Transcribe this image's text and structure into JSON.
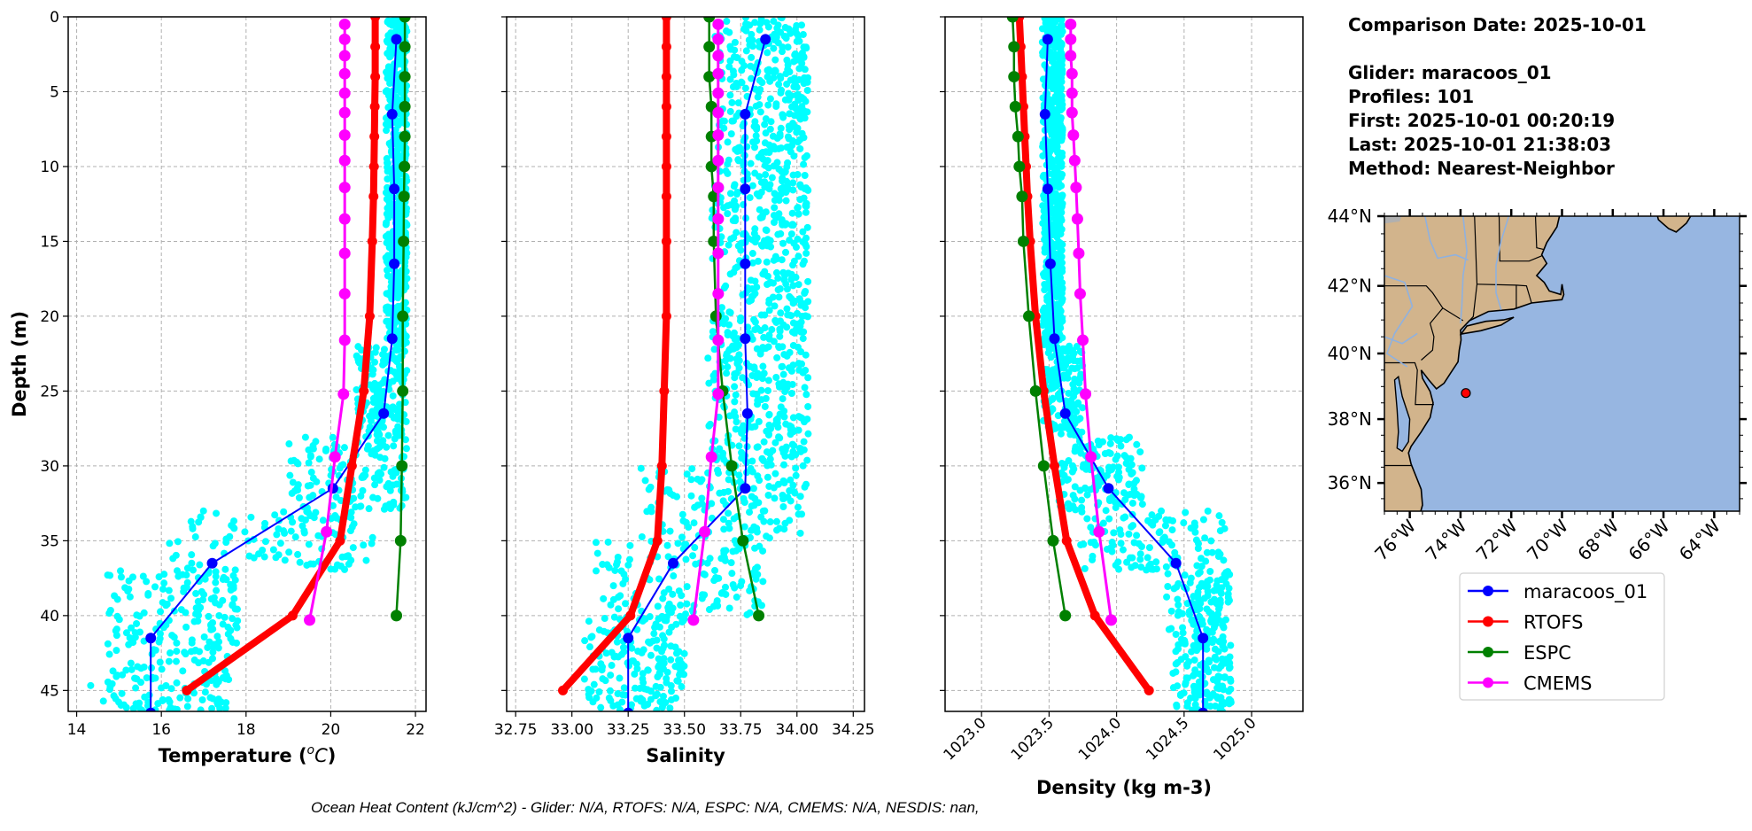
{
  "info": {
    "comparison": "Comparison Date: 2025-10-01",
    "glider": "Glider: maracoos_01",
    "profiles": "Profiles: 101",
    "first": "First: 2025-10-01 00:20:19",
    "last": "Last: 2025-10-01 21:38:03",
    "method": "Method: Nearest-Neighbor"
  },
  "footer": "Ocean Heat Content (kJ/cm^2) - Glider: N/A,  RTOFS: N/A,  ESPC: N/A,  CMEMS: N/A,  NESDIS: nan,",
  "colors": {
    "glider": "#0000ff",
    "rtofs": "#ff0000",
    "espc": "#008000",
    "cmems": "#ff00ff",
    "glider_raw": "#00ffff",
    "land": "#d2b48c",
    "ocean": "#97b6e1"
  },
  "legend": [
    {
      "key": "glider",
      "label": "maracoos_01"
    },
    {
      "key": "rtofs",
      "label": "RTOFS"
    },
    {
      "key": "espc",
      "label": "ESPC"
    },
    {
      "key": "cmems",
      "label": "CMEMS"
    }
  ],
  "chart_data": [
    {
      "type": "line",
      "id": "temperature",
      "xlabel": "Temperature (",
      "xlabel_unit_sup": "o",
      "xlabel_unit": "C",
      "xlabel_close": ")",
      "ylabel": "Depth (m)",
      "xlim": [
        13.8,
        22.25
      ],
      "ylim": [
        46.4,
        0
      ],
      "xticks": [
        14,
        16,
        18,
        20,
        22
      ],
      "xtick_labels": [
        "14",
        "16",
        "18",
        "20",
        "22"
      ],
      "yticks": [
        0,
        5,
        10,
        15,
        20,
        25,
        30,
        35,
        40,
        45
      ],
      "ytick_labels": [
        "0",
        "5",
        "10",
        "15",
        "20",
        "25",
        "30",
        "35",
        "40",
        "45"
      ],
      "grid": true,
      "glider_raw_envelope": [
        [
          0,
          22,
          21.3,
          21.8
        ],
        [
          22,
          28,
          20.6,
          21.8
        ],
        [
          28,
          33,
          19.0,
          21.8
        ],
        [
          33,
          37,
          16.0,
          21.0
        ],
        [
          37,
          42,
          14.7,
          17.8
        ],
        [
          42,
          46.4,
          14.3,
          17.6
        ]
      ],
      "series": [
        {
          "key": "glider",
          "depth": [
            1.5,
            6.5,
            11.5,
            16.5,
            21.5,
            26.5,
            31.5,
            36.5,
            41.5,
            46.5
          ],
          "values": [
            21.55,
            21.45,
            21.5,
            21.5,
            21.45,
            21.25,
            20.05,
            17.2,
            15.75,
            15.75
          ]
        },
        {
          "key": "rtofs",
          "depth": [
            0,
            2,
            4,
            6,
            8,
            10,
            12,
            15,
            20,
            25,
            30,
            35,
            40,
            45
          ],
          "values": [
            21.05,
            21.05,
            21.05,
            21.04,
            21.03,
            21.02,
            21.01,
            20.98,
            20.92,
            20.78,
            20.5,
            20.22,
            19.1,
            16.6
          ]
        },
        {
          "key": "espc",
          "depth": [
            0,
            2,
            4,
            6,
            8,
            10,
            12,
            15,
            20,
            25,
            30,
            35,
            40
          ],
          "values": [
            21.75,
            21.75,
            21.75,
            21.75,
            21.75,
            21.74,
            21.73,
            21.72,
            21.7,
            21.7,
            21.68,
            21.65,
            21.55
          ]
        },
        {
          "key": "cmems",
          "depth": [
            0.5,
            1.5,
            2.6,
            3.8,
            5.1,
            6.4,
            7.9,
            9.6,
            11.4,
            13.5,
            15.8,
            18.5,
            21.6,
            25.2,
            29.4,
            34.4,
            40.3
          ],
          "values": [
            20.33,
            20.33,
            20.33,
            20.33,
            20.33,
            20.33,
            20.33,
            20.33,
            20.33,
            20.33,
            20.33,
            20.33,
            20.33,
            20.3,
            20.1,
            19.9,
            19.5
          ]
        }
      ]
    },
    {
      "type": "line",
      "id": "salinity",
      "xlabel": "Salinity",
      "xlim": [
        32.71,
        34.3
      ],
      "ylim": [
        46.4,
        0
      ],
      "xticks": [
        32.75,
        33.0,
        33.25,
        33.5,
        33.75,
        34.0,
        34.25
      ],
      "xtick_labels": [
        "32.75",
        "33.00",
        "33.25",
        "33.50",
        "33.75",
        "34.00",
        "34.25"
      ],
      "yticks": [
        0,
        5,
        10,
        15,
        20,
        25,
        30,
        35,
        40,
        45
      ],
      "grid": true,
      "glider_raw_envelope": [
        [
          0,
          22,
          33.62,
          34.05
        ],
        [
          22,
          30,
          33.6,
          34.05
        ],
        [
          30,
          35,
          33.3,
          34.05
        ],
        [
          35,
          40,
          33.1,
          33.85
        ],
        [
          40,
          46.4,
          33.05,
          33.5
        ]
      ],
      "series": [
        {
          "key": "glider",
          "depth": [
            1.5,
            6.5,
            11.5,
            16.5,
            21.5,
            26.5,
            31.5,
            36.5,
            41.5,
            46.5
          ],
          "values": [
            33.86,
            33.77,
            33.77,
            33.77,
            33.77,
            33.78,
            33.77,
            33.45,
            33.25,
            33.25
          ]
        },
        {
          "key": "rtofs",
          "depth": [
            0,
            2,
            4,
            6,
            8,
            10,
            12,
            15,
            20,
            25,
            30,
            35,
            40,
            45
          ],
          "values": [
            33.42,
            33.42,
            33.42,
            33.42,
            33.42,
            33.42,
            33.42,
            33.42,
            33.42,
            33.41,
            33.4,
            33.38,
            33.26,
            32.96
          ]
        },
        {
          "key": "espc",
          "depth": [
            0,
            2,
            4,
            6,
            8,
            10,
            12,
            15,
            20,
            25,
            30,
            35,
            40
          ],
          "values": [
            33.61,
            33.61,
            33.61,
            33.62,
            33.62,
            33.62,
            33.63,
            33.63,
            33.64,
            33.67,
            33.71,
            33.76,
            33.83
          ]
        },
        {
          "key": "cmems",
          "depth": [
            0.5,
            1.5,
            2.6,
            3.8,
            5.1,
            6.4,
            7.9,
            9.6,
            11.4,
            13.5,
            15.8,
            18.5,
            21.6,
            25.2,
            29.4,
            34.4,
            40.3
          ],
          "values": [
            33.65,
            33.65,
            33.65,
            33.65,
            33.65,
            33.65,
            33.65,
            33.65,
            33.65,
            33.65,
            33.65,
            33.65,
            33.65,
            33.65,
            33.62,
            33.59,
            33.54
          ]
        }
      ]
    },
    {
      "type": "line",
      "id": "density",
      "xlabel": "Density (kg m-3)",
      "xlim": [
        1022.73,
        1025.38
      ],
      "ylim": [
        46.4,
        0
      ],
      "xticks": [
        1023.0,
        1023.5,
        1024.0,
        1024.5,
        1025.0
      ],
      "xtick_labels": [
        "1023.0",
        "1023.5",
        "1024.0",
        "1024.5",
        "1025.0"
      ],
      "xtick_rotation": 45,
      "yticks": [
        0,
        5,
        10,
        15,
        20,
        25,
        30,
        35,
        40,
        45
      ],
      "grid": true,
      "glider_raw_envelope": [
        [
          0,
          22,
          1023.45,
          1023.6
        ],
        [
          22,
          28,
          1023.45,
          1023.75
        ],
        [
          28,
          33,
          1023.55,
          1024.2
        ],
        [
          33,
          37,
          1023.7,
          1024.8
        ],
        [
          37,
          42,
          1024.35,
          1024.85
        ],
        [
          42,
          46.4,
          1024.4,
          1024.85
        ]
      ],
      "series": [
        {
          "key": "glider",
          "depth": [
            1.5,
            6.5,
            11.5,
            16.5,
            21.5,
            26.5,
            31.5,
            36.5,
            41.5,
            46.5
          ],
          "values": [
            1023.49,
            1023.47,
            1023.49,
            1023.51,
            1023.54,
            1023.62,
            1023.94,
            1024.44,
            1024.64,
            1024.64
          ]
        },
        {
          "key": "rtofs",
          "depth": [
            0,
            2,
            4,
            6,
            8,
            10,
            12,
            15,
            20,
            25,
            30,
            35,
            40,
            45
          ],
          "values": [
            1023.28,
            1023.29,
            1023.3,
            1023.31,
            1023.32,
            1023.33,
            1023.34,
            1023.36,
            1023.4,
            1023.46,
            1023.54,
            1023.63,
            1023.84,
            1024.24
          ]
        },
        {
          "key": "espc",
          "depth": [
            0,
            2,
            4,
            6,
            8,
            10,
            12,
            15,
            20,
            25,
            30,
            35,
            40
          ],
          "values": [
            1023.23,
            1023.24,
            1023.24,
            1023.25,
            1023.27,
            1023.28,
            1023.3,
            1023.31,
            1023.35,
            1023.4,
            1023.46,
            1023.53,
            1023.62
          ]
        },
        {
          "key": "cmems",
          "depth": [
            0.5,
            1.5,
            2.6,
            3.8,
            5.1,
            6.4,
            7.9,
            9.6,
            11.4,
            13.5,
            15.8,
            18.5,
            21.6,
            25.2,
            29.4,
            34.4,
            40.3
          ],
          "values": [
            1023.66,
            1023.66,
            1023.66,
            1023.67,
            1023.67,
            1023.67,
            1023.68,
            1023.69,
            1023.7,
            1023.71,
            1023.72,
            1023.73,
            1023.75,
            1023.77,
            1023.81,
            1023.87,
            1023.96
          ]
        }
      ]
    }
  ],
  "map": {
    "lon_range": [
      -77,
      -63
    ],
    "lat_range": [
      35.1,
      44
    ],
    "projection": "mercator",
    "lat_ticks": [
      44,
      42,
      40,
      38,
      36
    ],
    "lat_tick_labels": [
      "44°N",
      "42°N",
      "40°N",
      "38°N",
      "36°N"
    ],
    "lon_ticks": [
      -76,
      -74,
      -72,
      -70,
      -68,
      -66,
      -64
    ],
    "lon_tick_labels": [
      "76°W",
      "74°W",
      "72°W",
      "70°W",
      "68°W",
      "66°W",
      "64°W"
    ],
    "glider_position": {
      "lon": -73.79,
      "lat": 38.8
    },
    "marker_color": "#ff0000"
  }
}
